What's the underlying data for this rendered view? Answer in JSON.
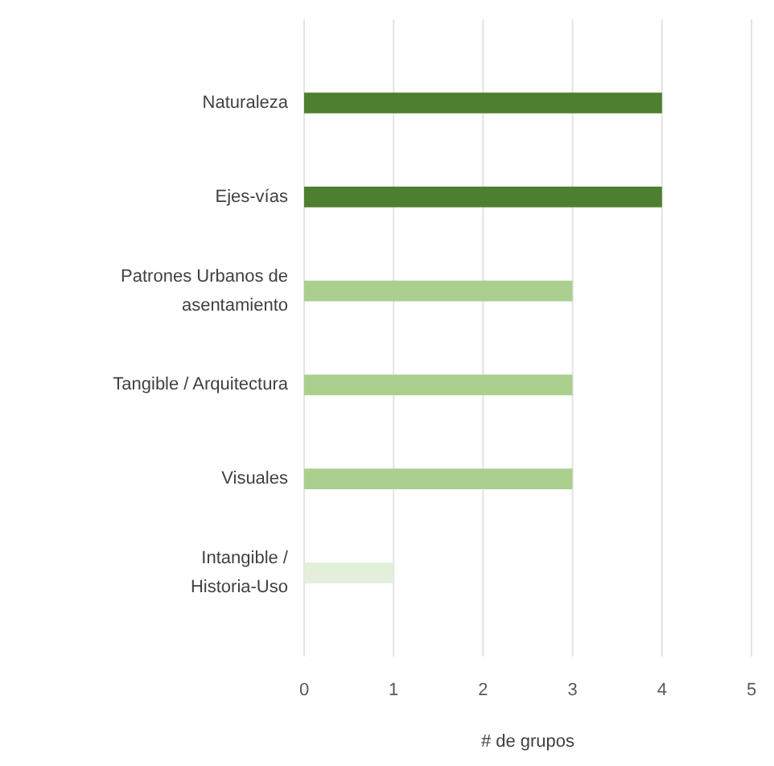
{
  "chart_data": {
    "type": "bar",
    "orientation": "horizontal",
    "xlabel": "# de grupos",
    "categories": [
      "Naturaleza",
      "Ejes-vías",
      "Patrones Urbanos de asentamiento",
      "Tangible / Arquitectura",
      "Visuales",
      "Intangible / Historia-Uso"
    ],
    "values": [
      4,
      4,
      3,
      3,
      3,
      1
    ],
    "colors": [
      "#4e7f2f",
      "#4e7f2f",
      "#a9d08e",
      "#a9d08e",
      "#a9d08e",
      "#e2efda"
    ],
    "xlim": [
      0,
      5
    ],
    "xticks": [
      0,
      1,
      2,
      3,
      4,
      5
    ],
    "grid": "x"
  }
}
